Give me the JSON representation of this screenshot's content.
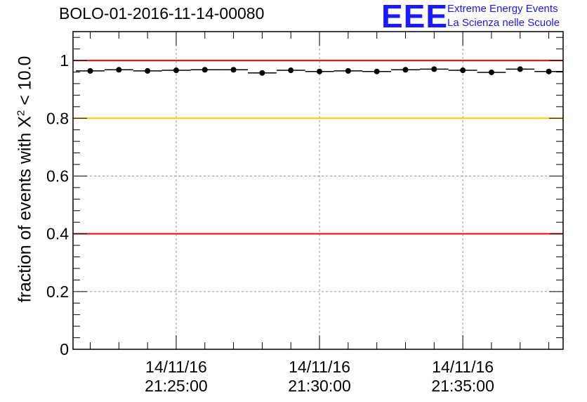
{
  "title": "BOLO-01-2016-11-14-00080",
  "logo": {
    "mark": "EEE",
    "line1": "Extreme Energy Events",
    "line2": "La Scienza nelle Scuole",
    "color": "#1a1aff"
  },
  "chart_data": {
    "type": "scatter",
    "title": "BOLO-01-2016-11-14-00080",
    "ylabel_prefix": "fraction of events with X",
    "ylabel_sup": "2",
    "ylabel_suffix": " < 10.0",
    "xlabel": "",
    "ylim": [
      0,
      1.1
    ],
    "yticks": [
      "0",
      "0.2",
      "0.4",
      "0.6",
      "0.8",
      "1"
    ],
    "xlim_minutes": [
      21.4,
      38.5
    ],
    "xtick_labels": [
      {
        "minute": 25,
        "date": "14/11/16",
        "time": "21:25:00"
      },
      {
        "minute": 30,
        "date": "14/11/16",
        "time": "21:30:00"
      },
      {
        "minute": 35,
        "date": "14/11/16",
        "time": "21:35:00"
      }
    ],
    "reference_lines": [
      {
        "y": 1.0,
        "color": "#ff0000"
      },
      {
        "y": 0.8,
        "color": "#ffcc00"
      },
      {
        "y": 0.4,
        "color": "#ff0000"
      }
    ],
    "grid": true,
    "bin_width_minutes": 1,
    "series": [
      {
        "name": "fraction",
        "x": [
          22.0,
          23.0,
          24.0,
          25.0,
          26.0,
          27.0,
          28.0,
          29.0,
          30.0,
          31.0,
          32.0,
          33.0,
          34.0,
          35.0,
          36.0,
          37.0,
          38.0
        ],
        "values": [
          0.964,
          0.968,
          0.964,
          0.966,
          0.968,
          0.968,
          0.957,
          0.966,
          0.962,
          0.964,
          0.962,
          0.968,
          0.97,
          0.966,
          0.959,
          0.97,
          0.962
        ]
      }
    ]
  }
}
